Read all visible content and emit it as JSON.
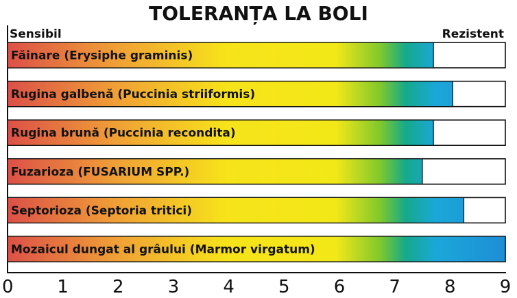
{
  "chart_data": {
    "type": "bar",
    "orientation": "horizontal",
    "title": "TOLERANȚA LA BOLI",
    "scale_left_label": "Sensibil",
    "scale_right_label": "Rezistent",
    "categories": [
      "Făinare (Erysiphe graminis)",
      "Rugina galbenă (Puccinia striiformis)",
      "Rugina brună (Puccinia recondita)",
      "Fuzarioza  (FUSARIUM SPP.)",
      "Septorioza (Septoria tritici)",
      "Mozaicul dungat al grâului (Marmor virgatum)"
    ],
    "values": [
      7.7,
      8.05,
      7.7,
      7.5,
      8.25,
      9.0
    ],
    "xlim": [
      0,
      9
    ],
    "xticks": [
      "0",
      "1",
      "2",
      "3",
      "4",
      "5",
      "6",
      "7",
      "8",
      "9"
    ],
    "grid": false,
    "colors": {
      "gradient": [
        "#dc5048",
        "#f0a036",
        "#f7e31a",
        "#f2e818",
        "#7ec82d",
        "#15a98b",
        "#1ba7d9",
        "#1e8ed6"
      ],
      "bar_outline": "#111111",
      "axis": "#111111"
    }
  }
}
